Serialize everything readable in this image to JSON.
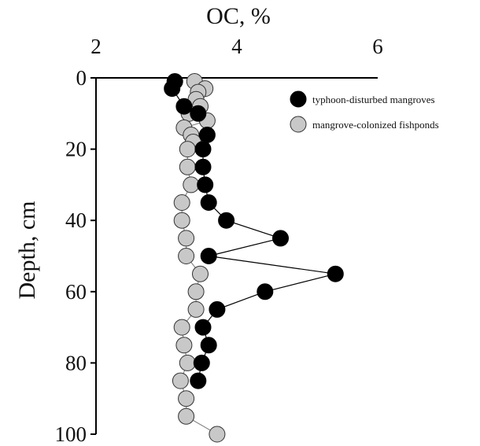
{
  "chart_data": {
    "type": "scatter",
    "x_axis_label": "OC, %",
    "y_axis_label": "Depth, cm",
    "x_axis_position": "top",
    "y_inverted": true,
    "xlim": [
      2,
      6
    ],
    "ylim": [
      0,
      100
    ],
    "x_ticks": [
      "2",
      "4",
      "6"
    ],
    "y_ticks": [
      "0",
      "20",
      "40",
      "60",
      "80",
      "100"
    ],
    "grid": false,
    "legend_position": "top-right",
    "series": [
      {
        "name": "typhoon-disturbed mangroves",
        "color": "#000000",
        "connected": true,
        "points": [
          {
            "x": 3.12,
            "y": 1
          },
          {
            "x": 3.08,
            "y": 3
          },
          {
            "x": 3.25,
            "y": 8
          },
          {
            "x": 3.45,
            "y": 10
          },
          {
            "x": 3.58,
            "y": 16
          },
          {
            "x": 3.52,
            "y": 20
          },
          {
            "x": 3.52,
            "y": 25
          },
          {
            "x": 3.55,
            "y": 30
          },
          {
            "x": 3.6,
            "y": 35
          },
          {
            "x": 3.85,
            "y": 40
          },
          {
            "x": 4.62,
            "y": 45
          },
          {
            "x": 3.6,
            "y": 50
          },
          {
            "x": 5.4,
            "y": 55
          },
          {
            "x": 4.4,
            "y": 60
          },
          {
            "x": 3.72,
            "y": 65
          },
          {
            "x": 3.52,
            "y": 70
          },
          {
            "x": 3.6,
            "y": 75
          },
          {
            "x": 3.5,
            "y": 80
          },
          {
            "x": 3.45,
            "y": 85
          }
        ]
      },
      {
        "name": "mangrove-colonized fishponds",
        "color": "#c8c8c8",
        "connected": true,
        "points": [
          {
            "x": 3.4,
            "y": 1
          },
          {
            "x": 3.55,
            "y": 3
          },
          {
            "x": 3.45,
            "y": 4
          },
          {
            "x": 3.42,
            "y": 6
          },
          {
            "x": 3.48,
            "y": 8
          },
          {
            "x": 3.32,
            "y": 10
          },
          {
            "x": 3.58,
            "y": 12
          },
          {
            "x": 3.25,
            "y": 14
          },
          {
            "x": 3.35,
            "y": 16
          },
          {
            "x": 3.38,
            "y": 18
          },
          {
            "x": 3.3,
            "y": 20
          },
          {
            "x": 3.3,
            "y": 25
          },
          {
            "x": 3.35,
            "y": 30
          },
          {
            "x": 3.22,
            "y": 35
          },
          {
            "x": 3.22,
            "y": 40
          },
          {
            "x": 3.28,
            "y": 45
          },
          {
            "x": 3.28,
            "y": 50
          },
          {
            "x": 3.48,
            "y": 55
          },
          {
            "x": 3.42,
            "y": 60
          },
          {
            "x": 3.42,
            "y": 65
          },
          {
            "x": 3.22,
            "y": 70
          },
          {
            "x": 3.25,
            "y": 75
          },
          {
            "x": 3.3,
            "y": 80
          },
          {
            "x": 3.2,
            "y": 85
          },
          {
            "x": 3.28,
            "y": 90
          },
          {
            "x": 3.28,
            "y": 95
          },
          {
            "x": 3.72,
            "y": 100
          }
        ]
      }
    ]
  }
}
